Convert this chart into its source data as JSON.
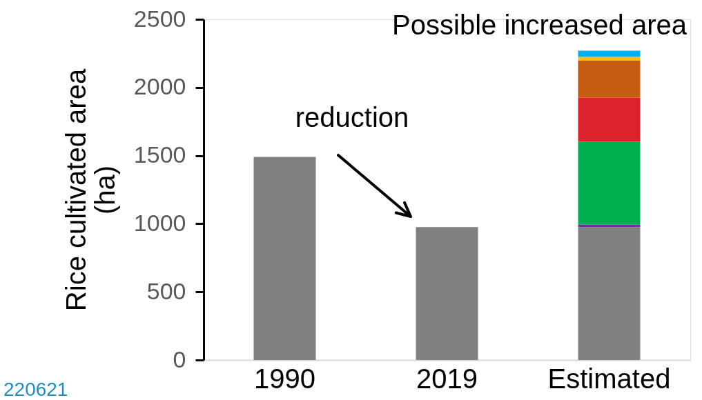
{
  "chart_data": {
    "type": "bar",
    "title": "Possible increased area",
    "ylabel": "Rice cultivated area\n(ha)",
    "categories": [
      "1990",
      "2019",
      "Estimated"
    ],
    "stacked": true,
    "series": [
      {
        "color": "#808080",
        "values": [
          1490,
          975,
          975
        ]
      },
      {
        "color": "#7030a0",
        "values": [
          null,
          null,
          20
        ]
      },
      {
        "color": "#00b050",
        "values": [
          null,
          null,
          607
        ]
      },
      {
        "color": "#dc222b",
        "values": [
          null,
          null,
          324
        ]
      },
      {
        "color": "#c55a11",
        "values": [
          null,
          null,
          273
        ]
      },
      {
        "color": "#ffc000",
        "values": [
          null,
          null,
          25
        ]
      },
      {
        "color": "#00b0f0",
        "values": [
          null,
          null,
          46
        ]
      }
    ],
    "ylim": [
      0,
      2500
    ],
    "yticks": [
      0,
      500,
      1000,
      1500,
      2000,
      2500
    ],
    "grid": false,
    "annotations": [
      "reduction",
      "220621"
    ]
  }
}
